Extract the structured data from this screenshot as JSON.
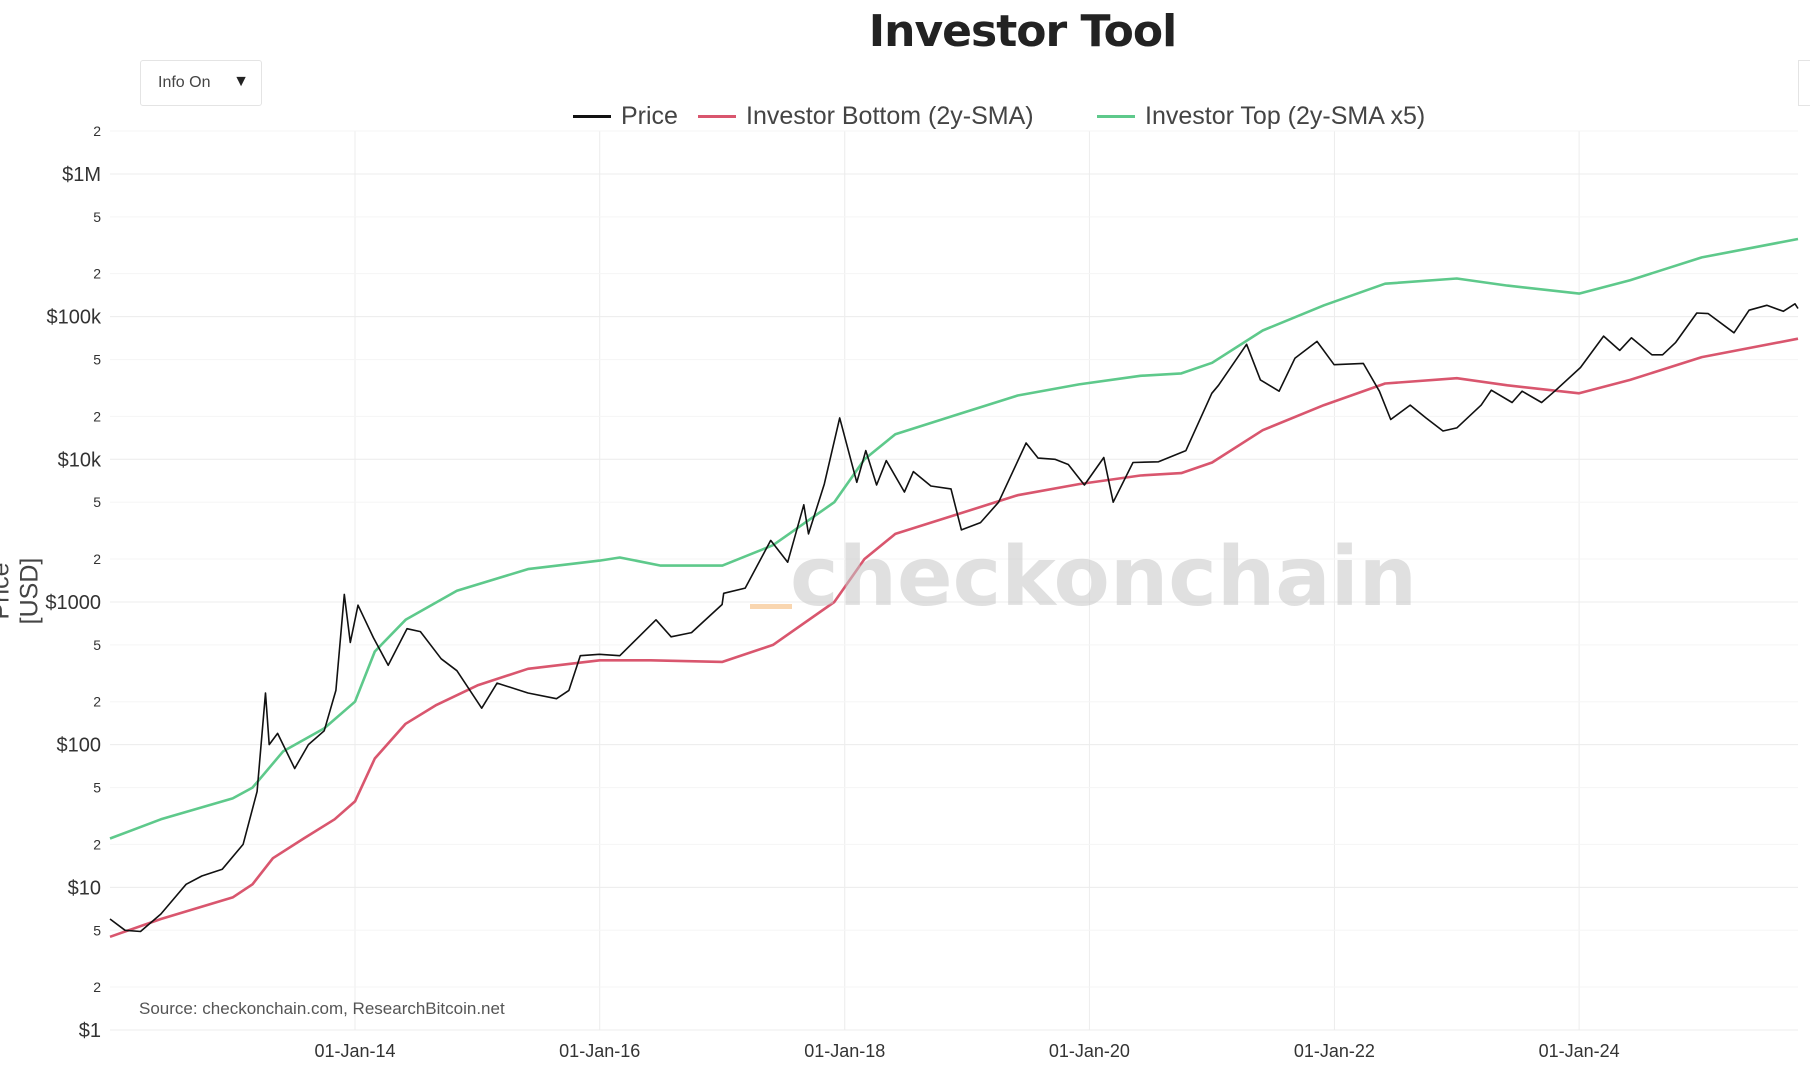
{
  "chart_data": {
    "type": "line",
    "title": "Investor Tool",
    "ylabel": "Price [USD]",
    "y_scale": "log",
    "ylim": [
      1,
      2000000
    ],
    "xlim": [
      "2012-01-01",
      "2025-10-15"
    ],
    "x_tick_labels": [
      "01-Jan-14",
      "01-Jan-16",
      "01-Jan-18",
      "01-Jan-20",
      "01-Jan-22",
      "01-Jan-24"
    ],
    "x_tick_dates": [
      "2014-01-01",
      "2016-01-01",
      "2018-01-01",
      "2020-01-01",
      "2022-01-01",
      "2024-01-01"
    ],
    "y_major_ticks": [
      {
        "value": 1,
        "label": "$1"
      },
      {
        "value": 10,
        "label": "$10"
      },
      {
        "value": 100,
        "label": "$100"
      },
      {
        "value": 1000,
        "label": "$1000"
      },
      {
        "value": 10000,
        "label": "$10k"
      },
      {
        "value": 100000,
        "label": "$100k"
      },
      {
        "value": 1000000,
        "label": "$1M"
      }
    ],
    "y_minor_labels": [
      "2",
      "5"
    ],
    "grid": true,
    "legend_position": "top-center",
    "series": [
      {
        "name": "Price",
        "color": "#111111",
        "points": [
          [
            "2012-01-01",
            6
          ],
          [
            "2012-02-15",
            5
          ],
          [
            "2012-04-01",
            4.9
          ],
          [
            "2012-06-01",
            6.5
          ],
          [
            "2012-08-15",
            10.5
          ],
          [
            "2012-10-01",
            12
          ],
          [
            "2012-12-01",
            13.4
          ],
          [
            "2013-02-01",
            20
          ],
          [
            "2013-03-15",
            47
          ],
          [
            "2013-04-09",
            230
          ],
          [
            "2013-04-20",
            100
          ],
          [
            "2013-05-15",
            120
          ],
          [
            "2013-07-05",
            68
          ],
          [
            "2013-08-15",
            100
          ],
          [
            "2013-10-01",
            125
          ],
          [
            "2013-11-05",
            240
          ],
          [
            "2013-11-30",
            1130
          ],
          [
            "2013-12-18",
            520
          ],
          [
            "2014-01-10",
            950
          ],
          [
            "2014-02-25",
            560
          ],
          [
            "2014-04-10",
            360
          ],
          [
            "2014-06-05",
            650
          ],
          [
            "2014-07-15",
            620
          ],
          [
            "2014-09-15",
            400
          ],
          [
            "2014-11-01",
            330
          ],
          [
            "2015-01-14",
            180
          ],
          [
            "2015-03-01",
            270
          ],
          [
            "2015-06-01",
            230
          ],
          [
            "2015-08-25",
            210
          ],
          [
            "2015-10-01",
            240
          ],
          [
            "2015-11-04",
            420
          ],
          [
            "2015-12-31",
            430
          ],
          [
            "2016-03-01",
            420
          ],
          [
            "2016-06-17",
            750
          ],
          [
            "2016-08-01",
            570
          ],
          [
            "2016-10-01",
            610
          ],
          [
            "2016-12-31",
            960
          ],
          [
            "2017-01-05",
            1150
          ],
          [
            "2017-03-10",
            1250
          ],
          [
            "2017-05-25",
            2700
          ],
          [
            "2017-07-15",
            1900
          ],
          [
            "2017-09-01",
            4800
          ],
          [
            "2017-09-15",
            3000
          ],
          [
            "2017-11-01",
            6700
          ],
          [
            "2017-12-17",
            19500
          ],
          [
            "2018-02-06",
            6900
          ],
          [
            "2018-03-05",
            11500
          ],
          [
            "2018-04-06",
            6600
          ],
          [
            "2018-05-05",
            9800
          ],
          [
            "2018-06-28",
            5900
          ],
          [
            "2018-07-25",
            8200
          ],
          [
            "2018-09-15",
            6500
          ],
          [
            "2018-11-14",
            6200
          ],
          [
            "2018-12-15",
            3200
          ],
          [
            "2019-02-10",
            3600
          ],
          [
            "2019-04-05",
            5000
          ],
          [
            "2019-06-26",
            13000
          ],
          [
            "2019-08-01",
            10200
          ],
          [
            "2019-09-20",
            10000
          ],
          [
            "2019-10-30",
            9200
          ],
          [
            "2019-12-17",
            6600
          ],
          [
            "2020-02-13",
            10300
          ],
          [
            "2020-03-12",
            5000
          ],
          [
            "2020-05-10",
            9500
          ],
          [
            "2020-07-25",
            9600
          ],
          [
            "2020-10-15",
            11500
          ],
          [
            "2020-12-31",
            29000
          ],
          [
            "2021-01-20",
            33000
          ],
          [
            "2021-04-14",
            64000
          ],
          [
            "2021-05-25",
            36000
          ],
          [
            "2021-07-20",
            30000
          ],
          [
            "2021-09-05",
            51000
          ],
          [
            "2021-11-10",
            67000
          ],
          [
            "2021-12-31",
            46000
          ],
          [
            "2022-03-28",
            47000
          ],
          [
            "2022-05-15",
            30000
          ],
          [
            "2022-06-18",
            19000
          ],
          [
            "2022-08-15",
            24000
          ],
          [
            "2022-10-01",
            19500
          ],
          [
            "2022-11-21",
            15800
          ],
          [
            "2023-01-01",
            16600
          ],
          [
            "2023-03-15",
            24000
          ],
          [
            "2023-04-14",
            30500
          ],
          [
            "2023-06-15",
            25000
          ],
          [
            "2023-07-15",
            30000
          ],
          [
            "2023-09-11",
            25000
          ],
          [
            "2023-10-20",
            30000
          ],
          [
            "2024-01-05",
            44000
          ],
          [
            "2024-03-14",
            73000
          ],
          [
            "2024-05-01",
            58000
          ],
          [
            "2024-06-05",
            71000
          ],
          [
            "2024-08-05",
            54000
          ],
          [
            "2024-09-06",
            54000
          ],
          [
            "2024-10-15",
            66000
          ],
          [
            "2024-12-17",
            106000
          ],
          [
            "2025-01-20",
            105000
          ],
          [
            "2025-04-07",
            77000
          ],
          [
            "2025-05-22",
            111000
          ],
          [
            "2025-07-14",
            120000
          ],
          [
            "2025-09-01",
            109000
          ],
          [
            "2025-10-06",
            123000
          ],
          [
            "2025-10-15",
            114000
          ]
        ]
      },
      {
        "name": "Investor Bottom (2y-SMA)",
        "color": "#d9566e",
        "points": [
          [
            "2012-01-01",
            4.5
          ],
          [
            "2012-06-01",
            6
          ],
          [
            "2013-01-01",
            8.5
          ],
          [
            "2013-03-01",
            10.5
          ],
          [
            "2013-05-01",
            16
          ],
          [
            "2013-08-01",
            22
          ],
          [
            "2013-11-01",
            30
          ],
          [
            "2014-01-01",
            40
          ],
          [
            "2014-03-01",
            80
          ],
          [
            "2014-06-01",
            140
          ],
          [
            "2014-09-01",
            190
          ],
          [
            "2015-01-01",
            260
          ],
          [
            "2015-06-01",
            340
          ],
          [
            "2016-01-01",
            390
          ],
          [
            "2016-06-01",
            390
          ],
          [
            "2017-01-01",
            380
          ],
          [
            "2017-06-01",
            500
          ],
          [
            "2017-12-01",
            1000
          ],
          [
            "2018-03-01",
            2000
          ],
          [
            "2018-06-01",
            3000
          ],
          [
            "2018-12-01",
            4100
          ],
          [
            "2019-06-01",
            5600
          ],
          [
            "2019-12-01",
            6700
          ],
          [
            "2020-06-01",
            7700
          ],
          [
            "2020-10-01",
            8000
          ],
          [
            "2021-01-01",
            9500
          ],
          [
            "2021-06-01",
            16000
          ],
          [
            "2021-12-01",
            24000
          ],
          [
            "2022-06-01",
            34000
          ],
          [
            "2023-01-01",
            37000
          ],
          [
            "2023-06-01",
            33000
          ],
          [
            "2024-01-01",
            29000
          ],
          [
            "2024-06-01",
            36000
          ],
          [
            "2025-01-01",
            52000
          ],
          [
            "2025-10-15",
            70000
          ]
        ]
      },
      {
        "name": "Investor Top (2y-SMA x5)",
        "color": "#5ec98b",
        "points": [
          [
            "2012-01-01",
            22
          ],
          [
            "2012-06-01",
            30
          ],
          [
            "2013-01-01",
            42
          ],
          [
            "2013-03-01",
            50
          ],
          [
            "2013-06-01",
            90
          ],
          [
            "2013-10-01",
            130
          ],
          [
            "2014-01-01",
            200
          ],
          [
            "2014-03-01",
            450
          ],
          [
            "2014-06-01",
            750
          ],
          [
            "2014-11-01",
            1200
          ],
          [
            "2015-06-01",
            1700
          ],
          [
            "2016-01-01",
            1950
          ],
          [
            "2016-03-01",
            2050
          ],
          [
            "2016-07-01",
            1800
          ],
          [
            "2017-01-01",
            1800
          ],
          [
            "2017-06-01",
            2500
          ],
          [
            "2017-12-01",
            5000
          ],
          [
            "2018-03-01",
            10000
          ],
          [
            "2018-06-01",
            15000
          ],
          [
            "2018-12-01",
            20500
          ],
          [
            "2019-06-01",
            28000
          ],
          [
            "2019-12-01",
            33500
          ],
          [
            "2020-06-01",
            38500
          ],
          [
            "2020-10-01",
            40000
          ],
          [
            "2021-01-01",
            47500
          ],
          [
            "2021-06-01",
            80000
          ],
          [
            "2021-12-01",
            120000
          ],
          [
            "2022-06-01",
            170000
          ],
          [
            "2023-01-01",
            185000
          ],
          [
            "2023-06-01",
            165000
          ],
          [
            "2024-01-01",
            145000
          ],
          [
            "2024-06-01",
            180000
          ],
          [
            "2025-01-01",
            260000
          ],
          [
            "2025-10-15",
            350000
          ]
        ]
      }
    ]
  },
  "controls": {
    "dropdown_label": "Info On",
    "dropdown_caret": "▼"
  },
  "source": "Source: checkonchain.com, ResearchBitcoin.net",
  "watermark": "checkonchain"
}
